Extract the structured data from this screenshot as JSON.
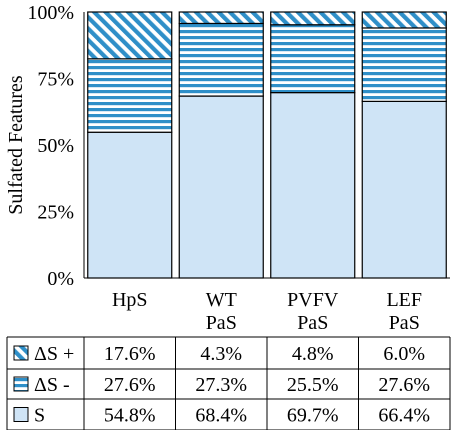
{
  "chart_data": {
    "type": "bar",
    "stacked": true,
    "normalized": true,
    "ylabel": "Sulfated Features",
    "ylim": [
      0,
      100
    ],
    "yticks": [
      "0%",
      "25%",
      "50%",
      "75%",
      "100%"
    ],
    "categories": [
      [
        "HpS"
      ],
      [
        "WT",
        "PaS"
      ],
      [
        "PVFV",
        "PaS"
      ],
      [
        "LEF",
        "PaS"
      ]
    ],
    "series": [
      {
        "name": "S",
        "pattern": "solid",
        "values": [
          54.8,
          68.4,
          69.7,
          66.4
        ],
        "labels": [
          "54.8%",
          "68.4%",
          "69.7%",
          "66.4%"
        ]
      },
      {
        "name": "ΔS -",
        "pattern": "horizontal-stripes",
        "values": [
          27.6,
          27.3,
          25.5,
          27.6
        ],
        "labels": [
          "27.6%",
          "27.3%",
          "25.5%",
          "27.6%"
        ]
      },
      {
        "name": "ΔS +",
        "pattern": "diagonal-stripes",
        "values": [
          17.6,
          4.3,
          4.8,
          6.0
        ],
        "labels": [
          "17.6%",
          "4.3%",
          "4.8%",
          "6.0%"
        ]
      }
    ],
    "colors": {
      "fill": "#cfe4f6",
      "stripe": "#2f8fc8",
      "outline": "#000000"
    },
    "legend": "table-below"
  }
}
